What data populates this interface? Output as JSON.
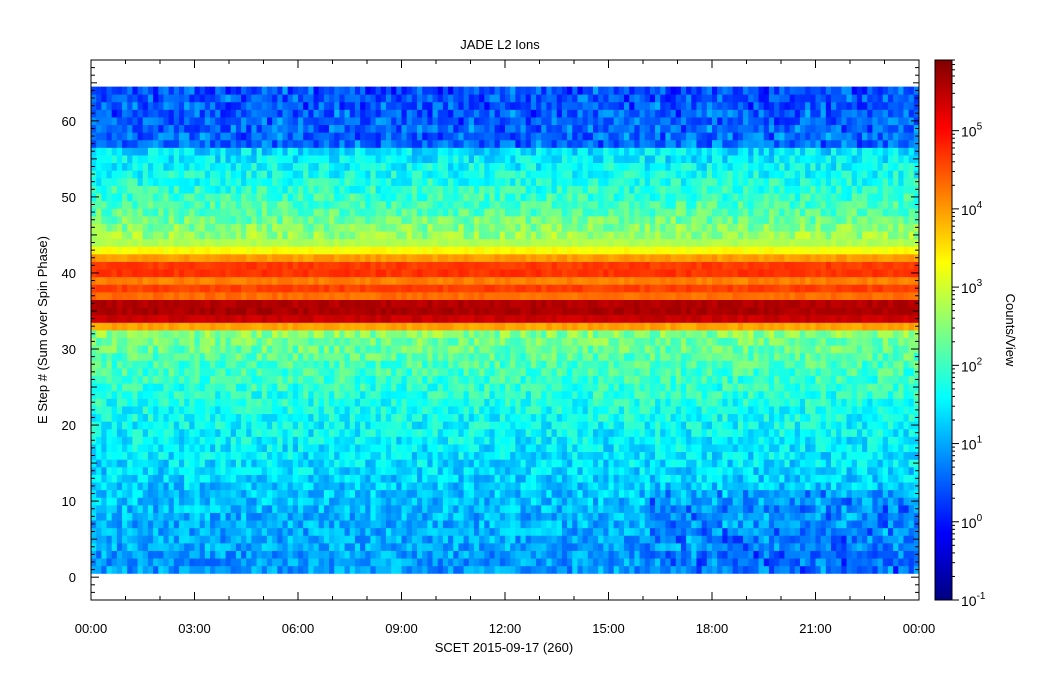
{
  "chart_data": {
    "type": "heatmap",
    "title": "JADE L2 Ions",
    "xlabel": "SCET 2015-09-17 (260)",
    "ylabel": "E Step # (Sum over Spin Phase)",
    "colorbar_label": "Counts/View",
    "x_tick_labels": [
      "00:00",
      "03:00",
      "06:00",
      "09:00",
      "12:00",
      "15:00",
      "18:00",
      "21:00",
      "00:00"
    ],
    "x_range_hours": [
      0,
      24
    ],
    "y_ticks": [
      "0",
      "10",
      "20",
      "30",
      "40",
      "50",
      "60"
    ],
    "y_range": [
      -3,
      68
    ],
    "data_y_range": [
      1,
      64
    ],
    "color_scale": "log",
    "color_range": [
      0.1,
      800000
    ],
    "colorbar_ticks": [
      {
        "base": "10",
        "exp": "-1",
        "value": 0.1
      },
      {
        "base": "10",
        "exp": "0",
        "value": 1
      },
      {
        "base": "10",
        "exp": "1",
        "value": 10
      },
      {
        "base": "10",
        "exp": "2",
        "value": 100
      },
      {
        "base": "10",
        "exp": "3",
        "value": 1000
      },
      {
        "base": "10",
        "exp": "4",
        "value": 10000
      },
      {
        "base": "10",
        "exp": "5",
        "value": 100000
      }
    ],
    "colormap": [
      "#00007f",
      "#0000ff",
      "#007fff",
      "#00ffff",
      "#7fff7f",
      "#ffff00",
      "#ff7f00",
      "#ff0000",
      "#7f0000"
    ],
    "energy_profile_counts": [
      {
        "estep": 1,
        "counts": 8
      },
      {
        "estep": 8,
        "counts": 12
      },
      {
        "estep": 15,
        "counts": 25
      },
      {
        "estep": 22,
        "counts": 50
      },
      {
        "estep": 28,
        "counts": 120
      },
      {
        "estep": 32,
        "counts": 300
      },
      {
        "estep": 34,
        "counts": 250000
      },
      {
        "estep": 35,
        "counts": 400000
      },
      {
        "estep": 36,
        "counts": 350000
      },
      {
        "estep": 37,
        "counts": 20000
      },
      {
        "estep": 38,
        "counts": 40000
      },
      {
        "estep": 39,
        "counts": 15000
      },
      {
        "estep": 40,
        "counts": 50000
      },
      {
        "estep": 41,
        "counts": 45000
      },
      {
        "estep": 42,
        "counts": 10000
      },
      {
        "estep": 43,
        "counts": 2000
      },
      {
        "estep": 44,
        "counts": 600
      },
      {
        "estep": 48,
        "counts": 150
      },
      {
        "estep": 52,
        "counts": 60
      },
      {
        "estep": 56,
        "counts": 25
      },
      {
        "estep": 57,
        "counts": 6
      },
      {
        "estep": 64,
        "counts": 4
      }
    ]
  }
}
